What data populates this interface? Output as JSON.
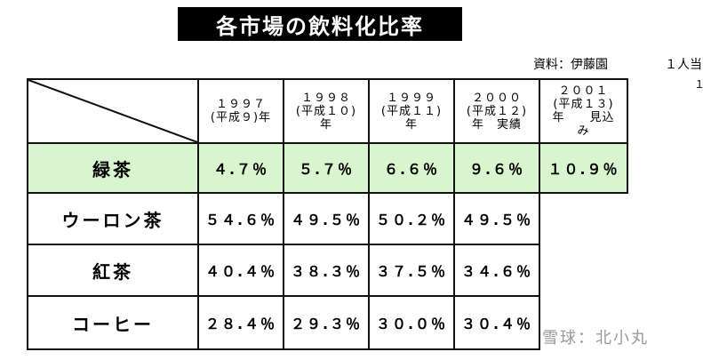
{
  "header": {
    "title": "各市場の飲料化比率",
    "source": "資料：伊藤園",
    "note": "１人当",
    "note_2": "１"
  },
  "table": {
    "columns": [
      [
        "１９９７",
        "(平成９)年"
      ],
      [
        "１９９８",
        "(平成１０)",
        "年"
      ],
      [
        "１９９９",
        "(平成１１)",
        "年"
      ],
      [
        "２０００",
        "(平成１２)",
        "年　実績"
      ],
      [
        "２００１",
        "(平成１３)",
        "年　　見込",
        "み"
      ]
    ],
    "rows": [
      {
        "label": "緑茶",
        "cells": [
          "４.７％",
          "５.７％",
          "６.６％",
          "９.６％",
          "１０.９％"
        ]
      },
      {
        "label": "ウーロン茶",
        "cells": [
          "５４.６％",
          "４９.５％",
          "５０.２％",
          "４９.５％"
        ]
      },
      {
        "label": "紅茶",
        "cells": [
          "４０.４％",
          "３８.３％",
          "３７.５％",
          "３４.６％"
        ]
      },
      {
        "label": "コーヒー",
        "cells": [
          "２８.４％",
          "２９.３％",
          "３０.０％",
          "３０.４％"
        ]
      }
    ]
  },
  "watermark": "雪球：北小丸"
}
